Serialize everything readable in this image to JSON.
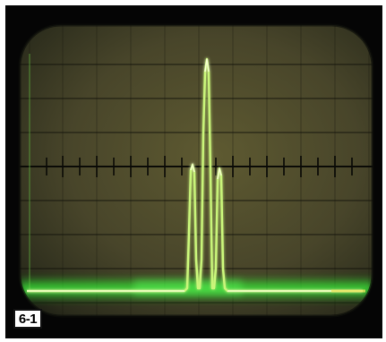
{
  "figure": {
    "label": "6-1"
  },
  "display": {
    "graticule_divisions_x": 10,
    "graticule_divisions_y": 8,
    "trace_color": "#d8ff7a",
    "phosphor_glow_color": "#3cff3c",
    "graticule_color": "#0c0c08",
    "screen_color": "#56532a"
  },
  "icons": [
    "oscilloscope-screen",
    "spectrum-trace"
  ]
}
